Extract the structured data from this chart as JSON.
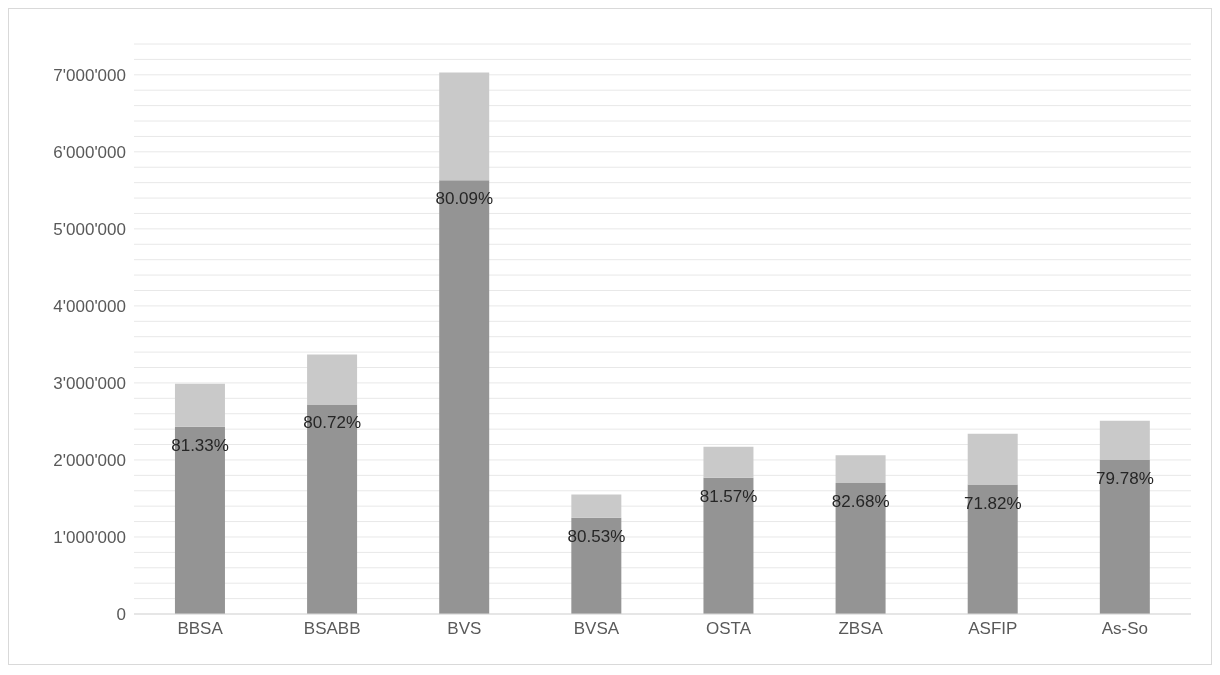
{
  "chart_data": {
    "type": "bar",
    "stacked": true,
    "categories": [
      "BBSA",
      "BSABB",
      "BVS",
      "BVSA",
      "OSTA",
      "ZBSA",
      "ASFIP",
      "As-So"
    ],
    "series": [
      {
        "color": "#949494",
        "values": [
          2430000,
          2720000,
          5630000,
          1250000,
          1770000,
          1700000,
          1680000,
          2000000
        ]
      },
      {
        "color": "#c9c9c9",
        "values": [
          560000,
          650000,
          1400000,
          300000,
          400000,
          360000,
          660000,
          510000
        ]
      }
    ],
    "ylim": [
      0,
      7400000
    ],
    "yticks": [
      0,
      {
        "value": 200000,
        "label": null
      },
      {
        "value": 400000,
        "label": null
      },
      {
        "value": 600000,
        "label": null
      },
      {
        "value": 800000,
        "label": null
      },
      {
        "value": 1000000,
        "label": "1'000'000"
      },
      {
        "value": 1200000,
        "label": null
      },
      {
        "value": 1400000,
        "label": null
      },
      {
        "value": 1600000,
        "label": null
      },
      {
        "value": 1800000,
        "label": null
      },
      {
        "value": 2000000,
        "label": "2'000'000"
      },
      {
        "value": 2200000,
        "label": null
      },
      {
        "value": 2400000,
        "label": null
      },
      {
        "value": 2600000,
        "label": null
      },
      {
        "value": 2800000,
        "label": null
      },
      {
        "value": 3000000,
        "label": "3'000'000"
      },
      {
        "value": 3200000,
        "label": null
      },
      {
        "value": 3400000,
        "label": null
      },
      {
        "value": 3600000,
        "label": null
      },
      {
        "value": 3800000,
        "label": null
      },
      {
        "value": 4000000,
        "label": "4'000'000"
      },
      {
        "value": 4200000,
        "label": null
      },
      {
        "value": 4400000,
        "label": null
      },
      {
        "value": 4600000,
        "label": null
      },
      {
        "value": 4800000,
        "label": null
      },
      {
        "value": 5000000,
        "label": "5'000'000"
      },
      {
        "value": 5200000,
        "label": null
      },
      {
        "value": 5400000,
        "label": null
      },
      {
        "value": 5600000,
        "label": null
      },
      {
        "value": 5800000,
        "label": null
      },
      {
        "value": 6000000,
        "label": "6'000'000"
      },
      {
        "value": 6200000,
        "label": null
      },
      {
        "value": 6400000,
        "label": null
      },
      {
        "value": 6600000,
        "label": null
      },
      {
        "value": 6800000,
        "label": null
      },
      {
        "value": 7000000,
        "label": "7'000'000"
      },
      {
        "value": 7200000,
        "label": null
      },
      {
        "value": 7400000,
        "label": null
      }
    ],
    "annotations": [
      {
        "text": "81.33%",
        "x": "BBSA",
        "y": 2430000
      },
      {
        "text": "80.72%",
        "x": "BSABB",
        "y": 2720000
      },
      {
        "text": "80.09%",
        "x": "BVS",
        "y": 5630000
      },
      {
        "text": "80.53%",
        "x": "BVSA",
        "y": 1250000
      },
      {
        "text": "81.57%",
        "x": "OSTA",
        "y": 1770000
      },
      {
        "text": "82.68%",
        "x": "ZBSA",
        "y": 1700000
      },
      {
        "text": "71.82%",
        "x": "ASFIP",
        "y": 1680000
      },
      {
        "text": "79.78%",
        "x": "As-So",
        "y": 2000000
      }
    ],
    "grid": "y",
    "legend": false
  }
}
